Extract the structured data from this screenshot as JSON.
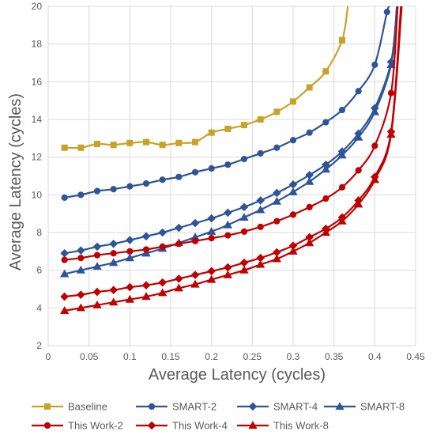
{
  "chart_data": {
    "type": "line",
    "xlabel": "Average Latency (cycles)",
    "ylabel": "Average Latency (cycles)",
    "xlim": [
      0,
      0.45
    ],
    "ylim": [
      2,
      20
    ],
    "x_ticks": [
      "0",
      "0.05",
      "0.1",
      "0.15",
      "0.2",
      "0.25",
      "0.3",
      "0.35",
      "0.4",
      "0.45"
    ],
    "y_ticks": [
      "2",
      "4",
      "6",
      "8",
      "10",
      "12",
      "14",
      "16",
      "18",
      "20"
    ],
    "grid": true,
    "legend_position": "bottom",
    "series": [
      {
        "name": "Baseline",
        "color": "#C9A227",
        "marker": "square",
        "points": [
          [
            0.02,
            12.5
          ],
          [
            0.04,
            12.5
          ],
          [
            0.06,
            12.7
          ],
          [
            0.08,
            12.65
          ],
          [
            0.1,
            12.75
          ],
          [
            0.12,
            12.8
          ],
          [
            0.14,
            12.65
          ],
          [
            0.16,
            12.75
          ],
          [
            0.18,
            12.8
          ],
          [
            0.2,
            13.3
          ],
          [
            0.22,
            13.5
          ],
          [
            0.24,
            13.7
          ],
          [
            0.26,
            14.0
          ],
          [
            0.28,
            14.4
          ],
          [
            0.3,
            14.95
          ],
          [
            0.32,
            15.7
          ],
          [
            0.34,
            16.55
          ],
          [
            0.36,
            18.2
          ]
        ],
        "tail": [
          [
            0.367,
            20.0
          ]
        ]
      },
      {
        "name": "SMART-2",
        "color": "#2E5597",
        "marker": "circle",
        "points": [
          [
            0.02,
            9.85
          ],
          [
            0.04,
            10.0
          ],
          [
            0.06,
            10.2
          ],
          [
            0.08,
            10.3
          ],
          [
            0.1,
            10.45
          ],
          [
            0.12,
            10.6
          ],
          [
            0.14,
            10.8
          ],
          [
            0.16,
            10.95
          ],
          [
            0.18,
            11.2
          ],
          [
            0.2,
            11.4
          ],
          [
            0.22,
            11.6
          ],
          [
            0.24,
            11.9
          ],
          [
            0.26,
            12.2
          ],
          [
            0.28,
            12.5
          ],
          [
            0.3,
            12.9
          ],
          [
            0.32,
            13.3
          ],
          [
            0.34,
            13.85
          ],
          [
            0.36,
            14.5
          ],
          [
            0.38,
            15.5
          ],
          [
            0.4,
            16.9
          ],
          [
            0.415,
            19.7
          ]
        ],
        "tail": [
          [
            0.418,
            20.0
          ]
        ]
      },
      {
        "name": "SMART-4",
        "color": "#2E5597",
        "marker": "diamond",
        "points": [
          [
            0.02,
            6.9
          ],
          [
            0.04,
            7.05
          ],
          [
            0.06,
            7.25
          ],
          [
            0.08,
            7.4
          ],
          [
            0.1,
            7.6
          ],
          [
            0.12,
            7.8
          ],
          [
            0.14,
            8.0
          ],
          [
            0.16,
            8.25
          ],
          [
            0.18,
            8.5
          ],
          [
            0.2,
            8.75
          ],
          [
            0.22,
            9.05
          ],
          [
            0.24,
            9.35
          ],
          [
            0.26,
            9.7
          ],
          [
            0.28,
            10.1
          ],
          [
            0.3,
            10.55
          ],
          [
            0.32,
            11.05
          ],
          [
            0.34,
            11.6
          ],
          [
            0.36,
            12.3
          ],
          [
            0.38,
            13.25
          ],
          [
            0.4,
            14.6
          ],
          [
            0.42,
            17.05
          ]
        ],
        "tail": [
          [
            0.427,
            20.0
          ]
        ]
      },
      {
        "name": "SMART-8",
        "color": "#2E5597",
        "marker": "triangle",
        "points": [
          [
            0.02,
            5.8
          ],
          [
            0.04,
            6.0
          ],
          [
            0.06,
            6.2
          ],
          [
            0.08,
            6.4
          ],
          [
            0.1,
            6.65
          ],
          [
            0.12,
            6.9
          ],
          [
            0.14,
            7.15
          ],
          [
            0.16,
            7.45
          ],
          [
            0.18,
            7.75
          ],
          [
            0.2,
            8.05
          ],
          [
            0.22,
            8.4
          ],
          [
            0.24,
            8.8
          ],
          [
            0.26,
            9.2
          ],
          [
            0.28,
            9.65
          ],
          [
            0.3,
            10.15
          ],
          [
            0.32,
            10.7
          ],
          [
            0.34,
            11.35
          ],
          [
            0.36,
            12.1
          ],
          [
            0.38,
            13.05
          ],
          [
            0.4,
            14.4
          ],
          [
            0.42,
            16.9
          ]
        ],
        "tail": [
          [
            0.428,
            20.0
          ]
        ]
      },
      {
        "name": "This Work-2",
        "color": "#C00000",
        "marker": "circle",
        "points": [
          [
            0.02,
            6.55
          ],
          [
            0.04,
            6.65
          ],
          [
            0.06,
            6.8
          ],
          [
            0.08,
            6.9
          ],
          [
            0.1,
            7.0
          ],
          [
            0.12,
            7.1
          ],
          [
            0.14,
            7.25
          ],
          [
            0.16,
            7.4
          ],
          [
            0.18,
            7.55
          ],
          [
            0.2,
            7.7
          ],
          [
            0.22,
            7.85
          ],
          [
            0.24,
            8.05
          ],
          [
            0.26,
            8.3
          ],
          [
            0.28,
            8.6
          ],
          [
            0.3,
            8.95
          ],
          [
            0.32,
            9.35
          ],
          [
            0.34,
            9.8
          ],
          [
            0.36,
            10.4
          ],
          [
            0.38,
            11.3
          ],
          [
            0.4,
            12.6
          ],
          [
            0.42,
            15.4
          ]
        ],
        "tail": [
          [
            0.428,
            20.0
          ]
        ]
      },
      {
        "name": "This Work-4",
        "color": "#C00000",
        "marker": "diamond",
        "points": [
          [
            0.02,
            4.6
          ],
          [
            0.04,
            4.7
          ],
          [
            0.06,
            4.85
          ],
          [
            0.08,
            4.95
          ],
          [
            0.1,
            5.1
          ],
          [
            0.12,
            5.2
          ],
          [
            0.14,
            5.35
          ],
          [
            0.16,
            5.55
          ],
          [
            0.18,
            5.75
          ],
          [
            0.2,
            5.95
          ],
          [
            0.22,
            6.15
          ],
          [
            0.24,
            6.4
          ],
          [
            0.26,
            6.65
          ],
          [
            0.28,
            6.95
          ],
          [
            0.3,
            7.3
          ],
          [
            0.32,
            7.75
          ],
          [
            0.34,
            8.2
          ],
          [
            0.36,
            8.8
          ],
          [
            0.38,
            9.7
          ],
          [
            0.4,
            10.95
          ],
          [
            0.42,
            13.35
          ]
        ],
        "tail": [
          [
            0.432,
            20.0
          ]
        ]
      },
      {
        "name": "This Work-8",
        "color": "#C00000",
        "marker": "triangle",
        "points": [
          [
            0.02,
            3.85
          ],
          [
            0.04,
            4.0
          ],
          [
            0.06,
            4.15
          ],
          [
            0.08,
            4.3
          ],
          [
            0.1,
            4.45
          ],
          [
            0.12,
            4.6
          ],
          [
            0.14,
            4.8
          ],
          [
            0.16,
            5.05
          ],
          [
            0.18,
            5.25
          ],
          [
            0.2,
            5.5
          ],
          [
            0.22,
            5.75
          ],
          [
            0.24,
            6.0
          ],
          [
            0.26,
            6.3
          ],
          [
            0.28,
            6.6
          ],
          [
            0.3,
            7.0
          ],
          [
            0.32,
            7.45
          ],
          [
            0.34,
            8.0
          ],
          [
            0.36,
            8.6
          ],
          [
            0.38,
            9.5
          ],
          [
            0.4,
            10.8
          ],
          [
            0.42,
            13.2
          ]
        ],
        "tail": [
          [
            0.433,
            20.0
          ]
        ]
      }
    ]
  }
}
